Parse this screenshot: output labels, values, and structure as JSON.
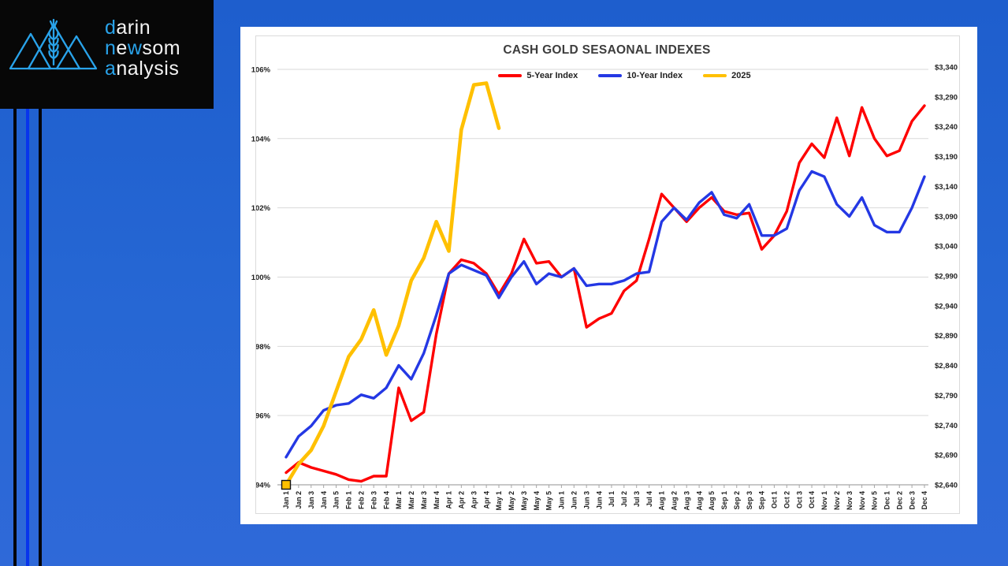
{
  "logo": {
    "accent_color": "#29A3EA",
    "text_color": "#F4F4F4",
    "lines": [
      [
        {
          "t": "d",
          "a": 1
        },
        {
          "t": "arin",
          "a": 0
        }
      ],
      [
        {
          "t": "n",
          "a": 1
        },
        {
          "t": "e",
          "a": 0
        },
        {
          "t": "w",
          "a": 1
        },
        {
          "t": "som",
          "a": 0
        }
      ],
      [
        {
          "t": "a",
          "a": 1
        },
        {
          "t": "nalysis",
          "a": 0
        }
      ]
    ]
  },
  "chart_data": {
    "type": "line",
    "title": "CASH GOLD SESAONAL INDEXES",
    "legend_position": "top",
    "grid": true,
    "categories": [
      "Jan 1",
      "Jan 2",
      "Jan 3",
      "Jan 4",
      "Jan 5",
      "Feb 1",
      "Feb 2",
      "Feb 3",
      "Feb 4",
      "Mar 1",
      "Mar 2",
      "Mar 3",
      "Mar 4",
      "Apr 1",
      "Apr 2",
      "Apr 3",
      "Apr 4",
      "May 1",
      "May 2",
      "May 3",
      "May 4",
      "May 5",
      "Jun 1",
      "Jun 2",
      "Jun 3",
      "Jun 4",
      "Jul 1",
      "Jul 2",
      "Jul 3",
      "Jul 4",
      "Aug 1",
      "Aug 2",
      "Aug 3",
      "Aug 4",
      "Aug 5",
      "Sep 1",
      "Sep 2",
      "Sep 3",
      "Sep 4",
      "Oct 1",
      "Oct 2",
      "Oct 3",
      "Oct 4",
      "Nov 1",
      "Nov 2",
      "Nov 3",
      "Nov 4",
      "Nov 5",
      "Dec 1",
      "Dec 2",
      "Dec 3",
      "Dec 4"
    ],
    "left_axis": {
      "unit": "percent",
      "min": 94,
      "max": 106,
      "step": 2,
      "ticks": [
        "94%",
        "96%",
        "98%",
        "100%",
        "102%",
        "104%",
        "106%"
      ]
    },
    "right_axis": {
      "unit": "dollars",
      "min": 2640,
      "max": 3340,
      "step": 50,
      "ticks": [
        "$2,640",
        "$2,690",
        "$2,740",
        "$2,790",
        "$2,840",
        "$2,890",
        "$2,940",
        "$2,990",
        "$3,040",
        "$3,090",
        "$3,140",
        "$3,190",
        "$3,240",
        "$3,290",
        "$3,340"
      ]
    },
    "series": [
      {
        "name": "5-Year Index",
        "color": "#FE0000",
        "values": [
          94.35,
          94.65,
          94.5,
          94.4,
          94.3,
          94.15,
          94.1,
          94.25,
          94.25,
          96.8,
          95.85,
          96.1,
          98.35,
          100.1,
          100.5,
          100.4,
          100.1,
          99.5,
          100.1,
          101.1,
          100.4,
          100.45,
          100.0,
          100.25,
          98.55,
          98.8,
          98.95,
          99.6,
          99.9,
          101.1,
          102.4,
          102.0,
          101.6,
          102.0,
          102.3,
          101.9,
          101.8,
          101.85,
          100.8,
          101.2,
          101.9,
          103.3,
          103.85,
          103.45,
          104.6,
          103.5,
          104.9,
          104.0,
          103.5,
          103.65,
          104.5,
          104.95
        ]
      },
      {
        "name": "10-Year Index",
        "color": "#2438E4",
        "values": [
          94.8,
          95.4,
          95.7,
          96.15,
          96.3,
          96.35,
          96.6,
          96.5,
          96.8,
          97.45,
          97.05,
          97.8,
          98.9,
          100.1,
          100.35,
          100.2,
          100.05,
          99.4,
          100.0,
          100.45,
          99.8,
          100.1,
          100.0,
          100.25,
          99.75,
          99.8,
          99.8,
          99.9,
          100.1,
          100.15,
          101.6,
          102.0,
          101.65,
          102.15,
          102.45,
          101.8,
          101.7,
          102.1,
          101.2,
          101.2,
          101.4,
          102.5,
          103.05,
          102.9,
          102.1,
          101.75,
          102.3,
          101.5,
          101.3,
          101.3,
          102.0,
          102.9
        ]
      },
      {
        "name": "2025",
        "color": "#FFC000",
        "first_point_marker": true,
        "values": [
          94.0,
          94.6,
          95.0,
          95.7,
          96.7,
          97.7,
          98.2,
          99.05,
          97.75,
          98.6,
          99.9,
          100.55,
          101.6,
          100.75,
          104.25,
          105.55,
          105.6,
          104.3
        ]
      }
    ]
  }
}
